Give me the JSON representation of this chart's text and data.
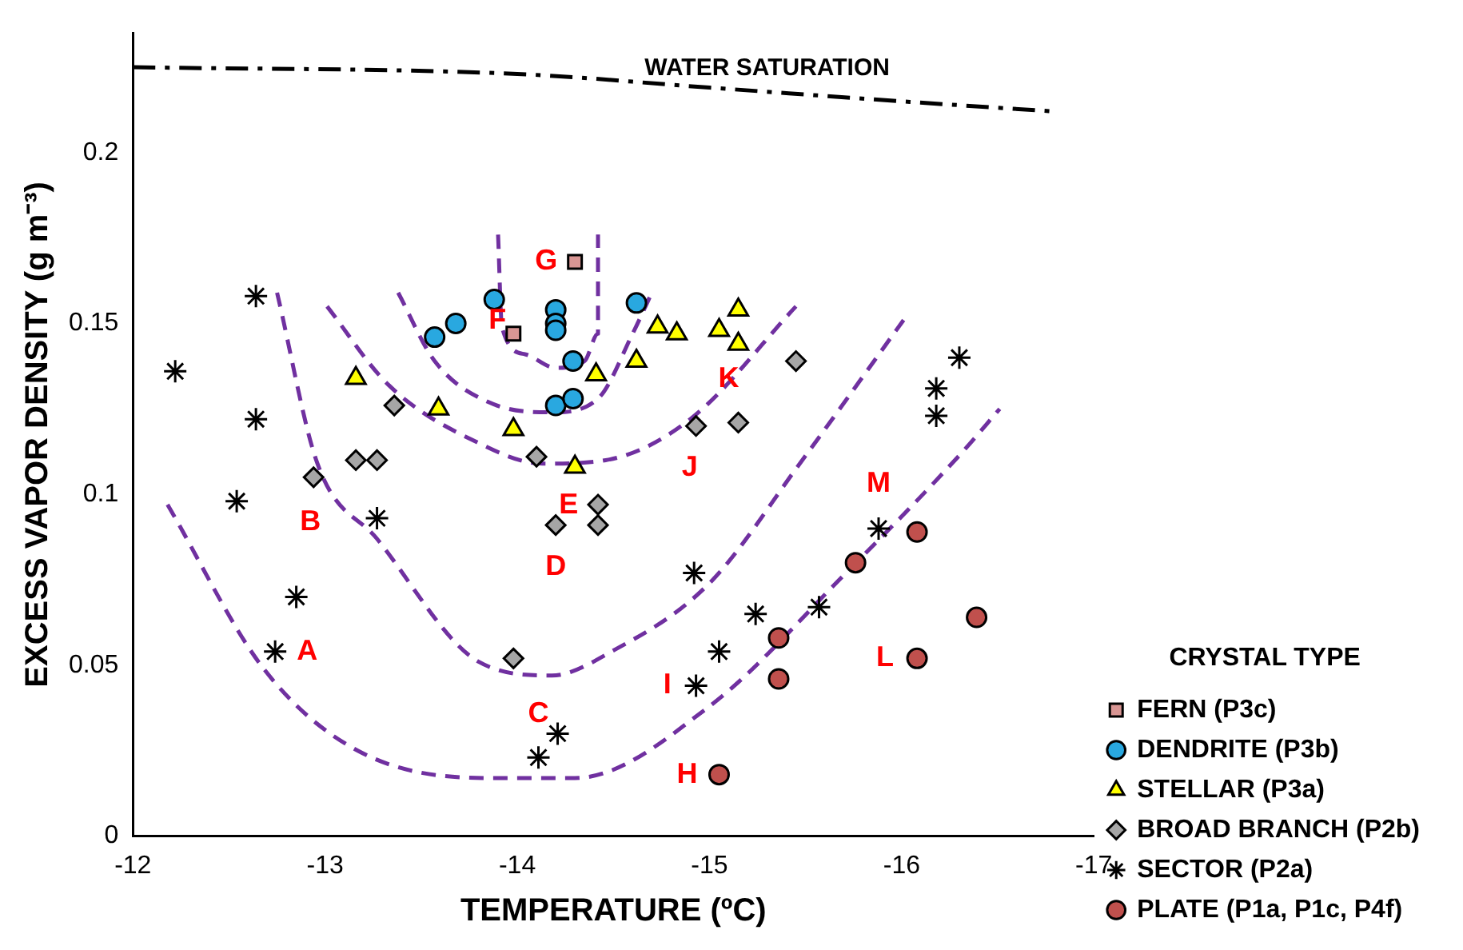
{
  "chart_data": {
    "type": "scatter",
    "xlabel": "TEMPERATURE (ºC)",
    "ylabel": "EXCESS VAPOR DENSITY (g m⁻³)",
    "legend_title": "CRYSTAL TYPE",
    "legend": "right",
    "grid": false,
    "xlim": [
      -12,
      -17
    ],
    "xticks": [
      -12,
      -13,
      -14,
      -15,
      -16,
      -17
    ],
    "ylim": [
      0,
      0.235
    ],
    "yticks": [
      0,
      0.05,
      {
        "value": 0.1,
        "label": "0.1"
      },
      0.15,
      {
        "value": 0.2,
        "label": "0.2"
      }
    ],
    "series": [
      {
        "name": "FERN (P3c)",
        "type": "scatter",
        "marker": "square",
        "color": "#d99694",
        "x": [
          -14.3,
          -13.98
        ],
        "values": [
          0.168,
          0.147
        ]
      },
      {
        "name": "DENDRITE (P3b)",
        "type": "scatter",
        "marker": "circle",
        "color": "#29a8e0",
        "x": [
          -13.88,
          -14.2,
          -14.2,
          -14.2,
          -14.29,
          -14.2,
          -14.29,
          -14.62,
          -13.57,
          -13.68
        ],
        "values": [
          0.157,
          0.154,
          0.15,
          0.148,
          0.139,
          0.126,
          0.128,
          0.156,
          0.146,
          0.15
        ]
      },
      {
        "name": "STELLAR (P3a)",
        "type": "scatter",
        "marker": "triangle",
        "color": "#ffff00",
        "x": [
          -13.16,
          -13.59,
          -13.98,
          -14.3,
          -14.41,
          -14.62,
          -14.73,
          -14.83,
          -15.05,
          -15.15,
          -15.15
        ],
        "values": [
          0.134,
          0.125,
          0.119,
          0.108,
          0.135,
          0.139,
          0.149,
          0.147,
          0.148,
          0.154,
          0.144
        ]
      },
      {
        "name": "BROAD BRANCH (P2b)",
        "type": "scatter",
        "marker": "diamond",
        "color": "#a6a6a6",
        "x": [
          -13.36,
          -12.94,
          -13.16,
          -13.27,
          -14.1,
          -14.42,
          -14.42,
          -14.2,
          -15.45,
          -14.93,
          -15.15,
          -13.98
        ],
        "values": [
          0.126,
          0.105,
          0.11,
          0.11,
          0.111,
          0.097,
          0.091,
          0.091,
          0.139,
          0.12,
          0.121,
          0.052
        ]
      },
      {
        "name": "SECTOR (P2a)",
        "type": "scatter",
        "marker": "cross",
        "color": "#000000",
        "x": [
          -12.64,
          -12.22,
          -12.64,
          -12.54,
          -13.27,
          -12.85,
          -12.74,
          -14.21,
          -14.11,
          -16.3,
          -16.18,
          -16.18,
          -15.88,
          -14.92,
          -15.24,
          -15.05,
          -14.93,
          -15.57
        ],
        "values": [
          0.158,
          0.136,
          0.122,
          0.098,
          0.093,
          0.07,
          0.054,
          0.03,
          0.023,
          0.14,
          0.131,
          0.123,
          0.09,
          0.077,
          0.065,
          0.054,
          0.044,
          0.067
        ]
      },
      {
        "name": "PLATE (P1a, P1c, P4f)",
        "type": "scatter",
        "marker": "circle",
        "color": "#c0504d",
        "x": [
          -16.08,
          -15.76,
          -15.36,
          -15.36,
          -16.08,
          -16.39,
          -15.05
        ],
        "values": [
          0.089,
          0.08,
          0.058,
          0.046,
          0.052,
          0.064,
          0.018
        ]
      },
      {
        "type": "line",
        "marker": "none",
        "line_style": "dashdot",
        "color": "#000000",
        "x": [
          -12.0,
          -14.0,
          -15.0,
          -16.0,
          -16.8
        ],
        "values": [
          0.225,
          0.223,
          0.219,
          0.215,
          0.212
        ]
      },
      {
        "type": "line",
        "marker": "none",
        "line_style": "dashed",
        "color": "#7030a0",
        "x": [
          -13.9,
          -13.92,
          -14.04,
          -14.2,
          -14.35,
          -14.42,
          -14.42
        ],
        "values": [
          0.176,
          0.149,
          0.141,
          0.137,
          0.139,
          0.147,
          0.176
        ]
      },
      {
        "type": "line",
        "marker": "none",
        "line_style": "dashed",
        "color": "#7030a0",
        "x": [
          -13.38,
          -13.57,
          -13.85,
          -14.18,
          -14.42,
          -14.6,
          -14.7
        ],
        "values": [
          0.159,
          0.139,
          0.127,
          0.124,
          0.128,
          0.147,
          0.159
        ]
      },
      {
        "type": "line",
        "marker": "none",
        "line_style": "dashed",
        "color": "#7030a0",
        "x": [
          -13.01,
          -13.33,
          -13.8,
          -14.13,
          -14.46,
          -14.9,
          -15.45
        ],
        "values": [
          0.155,
          0.132,
          0.115,
          0.109,
          0.11,
          0.122,
          0.155
        ]
      },
      {
        "type": "line",
        "marker": "none",
        "line_style": "dashed",
        "color": "#7030a0",
        "x": [
          -12.75,
          -12.96,
          -13.27,
          -13.8,
          -14.18,
          -14.49,
          -15.0,
          -15.47,
          -16.01
        ],
        "values": [
          0.159,
          0.109,
          0.087,
          0.051,
          0.047,
          0.054,
          0.074,
          0.109,
          0.151
        ]
      },
      {
        "type": "line",
        "marker": "none",
        "line_style": "dashed",
        "color": "#7030a0",
        "x": [
          -12.18,
          -12.68,
          -13.17,
          -13.87,
          -14.3,
          -15.0,
          -15.71,
          -16.31,
          -16.51
        ],
        "values": [
          0.097,
          0.049,
          0.025,
          0.017,
          0.017,
          0.038,
          0.077,
          0.112,
          0.125
        ]
      }
    ],
    "annotations": [
      {
        "text": "WATER SATURATION",
        "x": -15.3,
        "y": 0.218
      },
      {
        "text": "A",
        "x": -12.74,
        "y": 0.054
      },
      {
        "text": "B",
        "x": -12.94,
        "y": 0.105
      },
      {
        "text": "C",
        "x": -14.21,
        "y": 0.03
      },
      {
        "text": "D",
        "x": -14.2,
        "y": 0.091
      },
      {
        "text": "E",
        "x": -14.3,
        "y": 0.108
      },
      {
        "text": "F",
        "x": -13.98,
        "y": 0.147
      },
      {
        "text": "G",
        "x": -14.3,
        "y": 0.168
      },
      {
        "text": "H",
        "x": -15.05,
        "y": 0.018
      },
      {
        "text": "I",
        "x": -14.93,
        "y": 0.044
      },
      {
        "text": "J",
        "x": -14.93,
        "y": 0.12
      },
      {
        "text": "K",
        "x": -15.15,
        "y": 0.144
      },
      {
        "text": "L",
        "x": -16.08,
        "y": 0.052
      },
      {
        "text": "M",
        "x": -15.88,
        "y": 0.09
      }
    ]
  }
}
